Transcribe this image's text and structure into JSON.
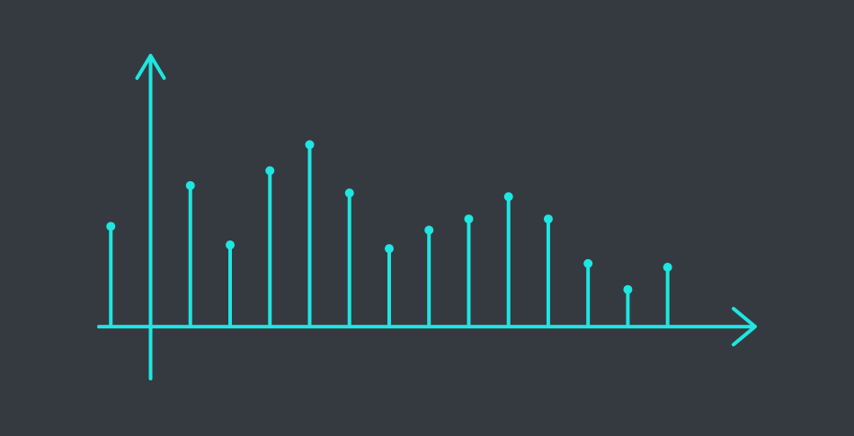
{
  "chart_data": {
    "type": "stem",
    "title": "",
    "xlabel": "",
    "ylabel": "",
    "grid": false,
    "legend": "none",
    "color": "#1ee6e0",
    "background": "#353a41",
    "xlim": [
      -1.3,
      15.2
    ],
    "ylim": [
      -1.4,
      7.3
    ],
    "series": [
      {
        "x": [
          -1,
          1,
          2,
          3,
          4,
          5,
          6,
          7,
          8,
          9,
          10,
          11,
          12,
          13
        ],
        "values": [
          2.7,
          3.8,
          2.2,
          4.2,
          4.9,
          3.6,
          2.1,
          2.6,
          2.9,
          3.5,
          2.9,
          1.7,
          1.0,
          1.6
        ]
      }
    ]
  }
}
